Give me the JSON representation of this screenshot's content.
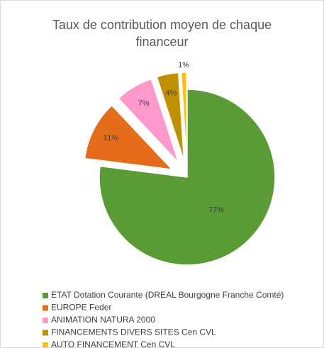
{
  "chart_data": {
    "type": "pie",
    "title": "Taux de contribution moyen de chaque financeur",
    "categories": [
      "ETAT Dotation Courante (DREAL Bourgogne Franche Comté)",
      "EUROPE Feder",
      "ANIMATION NATURA 2000",
      "FINANCEMENTS DIVERS SITES Cen CVL",
      "AUTO FINANCEMENT Cen CVL"
    ],
    "values": [
      77,
      11,
      7,
      4,
      1
    ],
    "value_labels": [
      "77%",
      "11%",
      "7%",
      "4%",
      "1%"
    ],
    "colors": [
      "#5b9b35",
      "#e46c1a",
      "#ff99cc",
      "#bf9000",
      "#ffc000"
    ],
    "legend": "bottom"
  }
}
